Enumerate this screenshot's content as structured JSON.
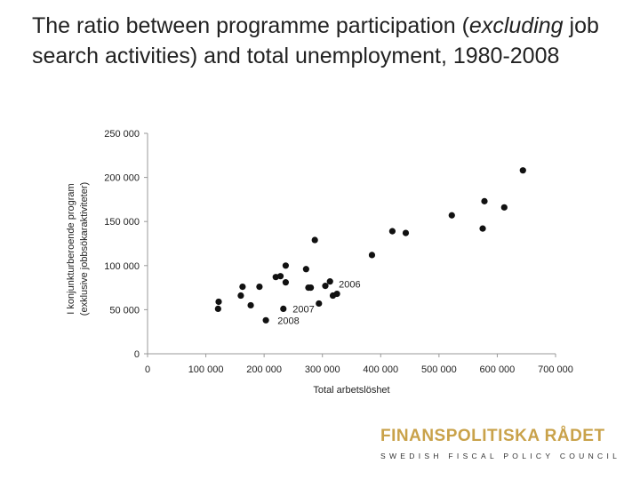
{
  "title": {
    "part1": "The ratio between programme participation (",
    "emph": "excluding",
    "part2": " job search activities) and total unemployment, 1980-2008"
  },
  "logo": {
    "main": "FINANSPOLITISKA RÅDET",
    "sub": "SWEDISH FISCAL POLICY COUNCIL",
    "color": "#c9a24a"
  },
  "chart_data": {
    "type": "scatter",
    "xlabel": "Total arbetslöshet",
    "ylabel_line1": "I konjunkturberoende program",
    "ylabel_line2": "(exklusive jobbsökaraktiviteter)",
    "xlim": [
      0,
      700000
    ],
    "ylim": [
      0,
      250000
    ],
    "xticks": [
      0,
      100000,
      200000,
      300000,
      400000,
      500000,
      600000,
      700000
    ],
    "xtick_labels": [
      "0",
      "100 000",
      "200 000",
      "300 000",
      "400 000",
      "500 000",
      "600 000",
      "700 000"
    ],
    "yticks": [
      0,
      50000,
      100000,
      150000,
      200000,
      250000
    ],
    "ytick_labels": [
      "0",
      "50 000",
      "100 000",
      "150 000",
      "200 000",
      "250 000"
    ],
    "grid": false,
    "marker_color": "#111111",
    "points": [
      {
        "x": 122000,
        "y": 59000
      },
      {
        "x": 121000,
        "y": 51000
      },
      {
        "x": 160000,
        "y": 66000
      },
      {
        "x": 163000,
        "y": 76000
      },
      {
        "x": 177000,
        "y": 55000
      },
      {
        "x": 192000,
        "y": 76000
      },
      {
        "x": 220000,
        "y": 87000
      },
      {
        "x": 228000,
        "y": 88000
      },
      {
        "x": 237000,
        "y": 81000
      },
      {
        "x": 237000,
        "y": 100000
      },
      {
        "x": 272000,
        "y": 96000
      },
      {
        "x": 276000,
        "y": 75000
      },
      {
        "x": 280000,
        "y": 75000
      },
      {
        "x": 287000,
        "y": 129000
      },
      {
        "x": 294000,
        "y": 57000
      },
      {
        "x": 305000,
        "y": 77000
      },
      {
        "x": 313000,
        "y": 82000
      },
      {
        "x": 318000,
        "y": 66000
      },
      {
        "x": 325000,
        "y": 68000
      },
      {
        "x": 385000,
        "y": 112000
      },
      {
        "x": 420000,
        "y": 139000
      },
      {
        "x": 443000,
        "y": 137000
      },
      {
        "x": 522000,
        "y": 157000
      },
      {
        "x": 575000,
        "y": 142000
      },
      {
        "x": 578000,
        "y": 173000
      },
      {
        "x": 612000,
        "y": 166000
      },
      {
        "x": 644000,
        "y": 208000
      },
      {
        "x": 203000,
        "y": 38000,
        "label": "2008"
      },
      {
        "x": 233000,
        "y": 51000,
        "label": "2007"
      }
    ],
    "annotations": [
      {
        "text": "2006",
        "x": 325000,
        "y": 79000
      },
      {
        "text": "2007",
        "x": 246000,
        "y": 51000
      },
      {
        "text": "2008",
        "x": 220000,
        "y": 38000
      }
    ]
  }
}
